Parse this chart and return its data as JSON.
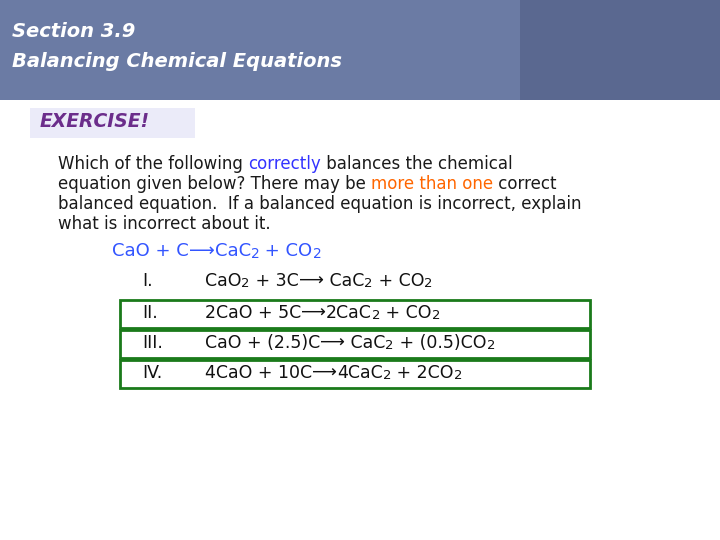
{
  "header_bg_color": "#6B7BA4",
  "header_text_line1": "Section 3.9",
  "header_text_line2": "Balancing Chemical Equations",
  "header_text_color": "#FFFFFF",
  "exercise_label": "EXERCISE!",
  "exercise_label_color": "#6B2D8B",
  "exercise_box_color": "#E8E8F8",
  "body_bg_color": "#FFFFFF",
  "main_text_color": "#1a1a1a",
  "highlight_correctly_color": "#3333FF",
  "highlight_more_color": "#FF6600",
  "reaction_color": "#3355FF",
  "box_border_color": "#1a7a1a",
  "font_size_header": 14,
  "font_size_body": 11.5,
  "font_size_eq": 12
}
